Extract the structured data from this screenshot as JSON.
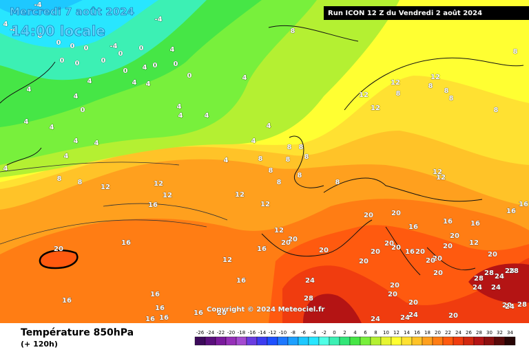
{
  "header": {
    "date": "Mercredi 7 août 2024",
    "time": "14:00 locale",
    "run": "Run ICON 12 Z du Vendredi 2 août 2024"
  },
  "copyright": "Copyright © 2024 Meteociel.fr",
  "footer": {
    "title": "Température 850hPa",
    "subtitle": "(+ 120h)"
  },
  "legend": {
    "labels": [
      "-26",
      "-24",
      "-22",
      "-20",
      "-18",
      "-16",
      "-14",
      "-12",
      "-10",
      "-8",
      "-6",
      "-4",
      "-2",
      "0",
      "2",
      "4",
      "6",
      "8",
      "10",
      "12",
      "14",
      "16",
      "18",
      "20",
      "22",
      "24",
      "26",
      "28",
      "30",
      "32",
      "34"
    ],
    "colors": [
      "#3c0a5a",
      "#5a0f7c",
      "#7a1a9c",
      "#9630b8",
      "#a44bd0",
      "#6a3ce0",
      "#3c3cf0",
      "#1e50ff",
      "#1e78ff",
      "#1ea0ff",
      "#1ec8ff",
      "#28e6ff",
      "#50ffe6",
      "#3cf0b4",
      "#32e678",
      "#46e646",
      "#78f03c",
      "#b4f032",
      "#e6f532",
      "#ffff32",
      "#ffe132",
      "#ffc328",
      "#ffa01e",
      "#ff7d14",
      "#ff5a0f",
      "#f03c0f",
      "#d2280f",
      "#b41414",
      "#8c0f0f",
      "#5a0a0a",
      "#280505"
    ]
  },
  "contour_labels": [
    -4,
    -4,
    4,
    -4,
    0,
    0,
    0,
    0,
    -4,
    0,
    0,
    0,
    0,
    0,
    4,
    0,
    0,
    4,
    0,
    0,
    4,
    4,
    4,
    4,
    4,
    4,
    0,
    4,
    4,
    4,
    4,
    4,
    4,
    4,
    4,
    4,
    4,
    4,
    8,
    4,
    8,
    8,
    12,
    12,
    12,
    8,
    8,
    8,
    8,
    12,
    8,
    8,
    8,
    8,
    8,
    8,
    8,
    8,
    8,
    8,
    12,
    12,
    12,
    16,
    12,
    12,
    8,
    12,
    12,
    16,
    16,
    16,
    16,
    16,
    20,
    20,
    12,
    20,
    20,
    16,
    16,
    20,
    12,
    16,
    20,
    20,
    20,
    20,
    16,
    20,
    20,
    20,
    12,
    20,
    20,
    20,
    24,
    28,
    20,
    20,
    20,
    20,
    24,
    24,
    24,
    20,
    28,
    28,
    24,
    28,
    28,
    24,
    24,
    20,
    24,
    28,
    20,
    16,
    16,
    16,
    16,
    16,
    16,
    20
  ]
}
